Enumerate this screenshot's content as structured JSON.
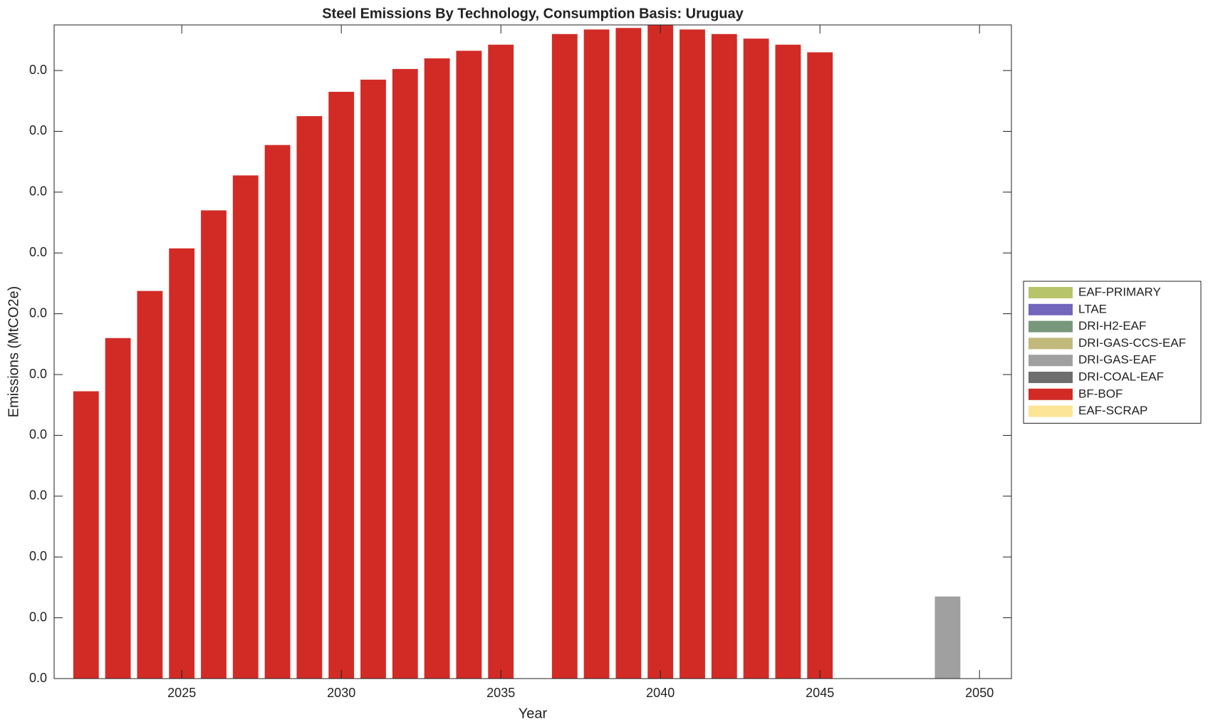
{
  "chart_data": {
    "type": "stacked_bar",
    "title": "Steel Emissions By Technology, Consumption Basis: Uruguay",
    "x_label": "Year",
    "y_label": "Emissions (MtCO2e)",
    "x": [
      2022,
      2023,
      2024,
      2025,
      2026,
      2027,
      2028,
      2029,
      2030,
      2031,
      2032,
      2033,
      2034,
      2035,
      2036,
      2037,
      2038,
      2039,
      2040,
      2041,
      2042,
      2043,
      2044,
      2045,
      2046,
      2047,
      2048,
      2049
    ],
    "series": [
      {
        "name": "EAF-PRIMARY",
        "color": "#b8c46a",
        "values": [
          0,
          0,
          0,
          0,
          0,
          0,
          0,
          0,
          0,
          0,
          0,
          0,
          0,
          0,
          0,
          0,
          0,
          0,
          0,
          0,
          0,
          0,
          0,
          0,
          0,
          0,
          0,
          0
        ]
      },
      {
        "name": "LTAE",
        "color": "#7166bb",
        "values": [
          0,
          0,
          0,
          0,
          0,
          0,
          0,
          0,
          0,
          0,
          0,
          0,
          0,
          0,
          0,
          0,
          0,
          0,
          0,
          0,
          0,
          0,
          0,
          0,
          0,
          0,
          0,
          0
        ]
      },
      {
        "name": "DRI-H2-EAF",
        "color": "#77987a",
        "values": [
          0,
          0,
          0,
          0,
          0,
          0,
          0,
          0,
          0,
          0,
          0,
          0,
          0,
          0,
          0,
          0,
          0,
          0,
          0,
          0,
          0,
          0,
          0,
          0,
          0,
          0,
          0,
          0
        ]
      },
      {
        "name": "DRI-GAS-CCS-EAF",
        "color": "#c2b97c",
        "values": [
          0,
          0,
          0,
          0,
          0,
          0,
          0,
          0,
          0,
          0,
          0,
          0,
          0,
          0,
          0,
          0,
          0,
          0,
          0,
          0,
          0,
          0,
          0,
          0,
          0,
          0,
          0,
          0
        ]
      },
      {
        "name": "DRI-GAS-EAF",
        "color": "#a0a0a0",
        "values": [
          0,
          0,
          0,
          0,
          0,
          0,
          0,
          0,
          0,
          0,
          0,
          0,
          0,
          0,
          0,
          0,
          0,
          0,
          0,
          0,
          0,
          0,
          0,
          0,
          0,
          0,
          0,
          0.0054
        ]
      },
      {
        "name": "DRI-COAL-EAF",
        "color": "#6e6e6e",
        "values": [
          0,
          0,
          0,
          0,
          0,
          0,
          0,
          0,
          0,
          0,
          0,
          0,
          0,
          0,
          0,
          0,
          0,
          0,
          0,
          0,
          0,
          0,
          0,
          0,
          0,
          0,
          0,
          0
        ]
      },
      {
        "name": "BF-BOF",
        "color": "#d22b26",
        "values": [
          0.0189,
          0.0224,
          0.0255,
          0.0283,
          0.0308,
          0.0331,
          0.0351,
          0.037,
          0.0386,
          0.0394,
          0.0401,
          0.0408,
          0.0413,
          0.0417,
          0,
          0.0424,
          0.0427,
          0.0428,
          0.043,
          0.0427,
          0.0424,
          0.0421,
          0.0417,
          0.0412,
          0,
          0,
          0,
          0
        ]
      },
      {
        "name": "EAF-SCRAP",
        "color": "#fde597",
        "values": [
          0,
          0,
          0,
          0,
          0,
          0,
          0,
          0,
          0,
          0,
          0,
          0,
          0,
          0,
          0,
          0,
          0,
          0,
          0,
          0,
          0,
          0,
          0,
          0,
          0,
          0,
          0,
          0
        ]
      }
    ],
    "xlim": [
      2021,
      2051
    ],
    "xticks": [
      2025,
      2030,
      2035,
      2040,
      2045,
      2050
    ],
    "ylim": [
      0,
      0.043
    ],
    "yticks": [
      {
        "value": 0,
        "label": "0.0"
      },
      {
        "value": 0.004,
        "label": "0.0"
      },
      {
        "value": 0.008,
        "label": "0.0"
      },
      {
        "value": 0.012,
        "label": "0.0"
      },
      {
        "value": 0.016,
        "label": "0.0"
      },
      {
        "value": 0.02,
        "label": "0.0"
      },
      {
        "value": 0.024,
        "label": "0.0"
      },
      {
        "value": 0.028,
        "label": "0.0"
      },
      {
        "value": 0.032,
        "label": "0.0"
      },
      {
        "value": 0.036,
        "label": "0.0"
      },
      {
        "value": 0.04,
        "label": "0.0"
      }
    ],
    "legend": "right",
    "grid": false
  }
}
